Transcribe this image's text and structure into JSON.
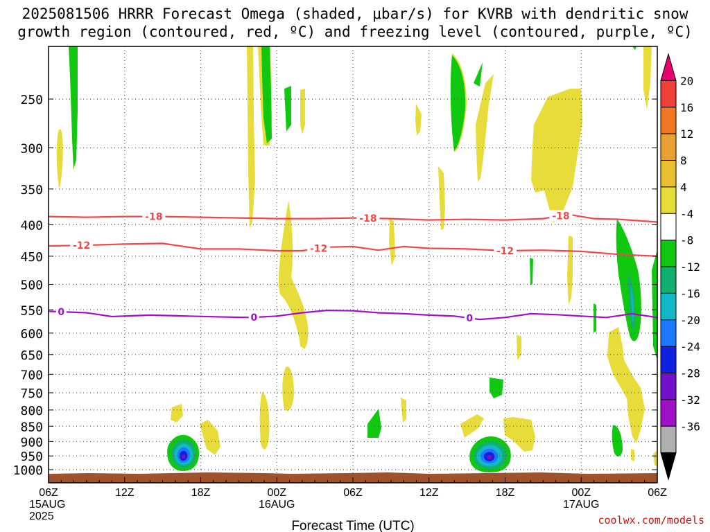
{
  "title": {
    "line1": "2025081506 HRRR Forecast Omega (shaded, μbar/s) for KVRB with dendritic snow",
    "line2": "growth region (contoured, red, ºC) and freezing level (contoured, purple, ºC)"
  },
  "credit": "coolwx.com/models",
  "chart_data": {
    "type": "time-height cross section",
    "xlabel": "Forecast Time (UTC)",
    "x_ticks": [
      {
        "hour": 0,
        "lines": [
          "06Z",
          "15AUG",
          "2025"
        ]
      },
      {
        "hour": 6,
        "lines": [
          "12Z"
        ]
      },
      {
        "hour": 12,
        "lines": [
          "18Z"
        ]
      },
      {
        "hour": 18,
        "lines": [
          "00Z",
          "16AUG"
        ]
      },
      {
        "hour": 24,
        "lines": [
          "06Z"
        ]
      },
      {
        "hour": 30,
        "lines": [
          "12Z"
        ]
      },
      {
        "hour": 36,
        "lines": [
          "18Z"
        ]
      },
      {
        "hour": 42,
        "lines": [
          "00Z",
          "17AUG"
        ]
      },
      {
        "hour": 48,
        "lines": [
          "06Z"
        ]
      }
    ],
    "xlim": [
      0,
      48
    ],
    "y_ticks": [
      250,
      300,
      350,
      400,
      450,
      500,
      550,
      600,
      650,
      700,
      750,
      800,
      850,
      900,
      950,
      1000
    ],
    "ylim": [
      200,
      1020
    ],
    "y_scale": "log-pressure",
    "grid": true,
    "colorbar": {
      "levels": [
        "20",
        "16",
        "12",
        "8",
        "4",
        "-4",
        "-8",
        "-12",
        "-16",
        "-20",
        "-24",
        "-28",
        "-32",
        "-36"
      ],
      "colors": [
        "#e8006e",
        "#f0403a",
        "#f07820",
        "#e8a030",
        "#e8c030",
        "#e8dc3a",
        "#ffffff",
        "#10c810",
        "#10b070",
        "#10b8c8",
        "#1e78ff",
        "#1020e0",
        "#7010c8",
        "#a010c8",
        "#b0b0b0",
        "#000000"
      ]
    },
    "contours": [
      {
        "name": "-18",
        "color": "#f04848",
        "labels": [
          {
            "hour": 8.3,
            "value": "-18"
          },
          {
            "hour": 25.2,
            "value": "-18"
          },
          {
            "hour": 40.4,
            "value": "-18"
          }
        ],
        "points": [
          [
            0,
            388
          ],
          [
            3,
            389
          ],
          [
            6,
            388
          ],
          [
            9,
            388
          ],
          [
            12,
            389
          ],
          [
            15,
            390
          ],
          [
            18,
            391
          ],
          [
            21,
            391
          ],
          [
            24,
            390
          ],
          [
            27,
            391
          ],
          [
            30,
            393
          ],
          [
            33,
            392
          ],
          [
            36,
            393
          ],
          [
            39,
            391
          ],
          [
            41,
            385
          ],
          [
            43,
            391
          ],
          [
            45,
            392
          ],
          [
            48,
            396
          ]
        ]
      },
      {
        "name": "-12",
        "color": "#f04848",
        "labels": [
          {
            "hour": 2.6,
            "value": "-12"
          },
          {
            "hour": 21.3,
            "value": "-12"
          },
          {
            "hour": 36.0,
            "value": "-12"
          }
        ],
        "points": [
          [
            0,
            433
          ],
          [
            3,
            432
          ],
          [
            6,
            430
          ],
          [
            9,
            429
          ],
          [
            12,
            438
          ],
          [
            15,
            438
          ],
          [
            18,
            441
          ],
          [
            20,
            441
          ],
          [
            22,
            435
          ],
          [
            24,
            434
          ],
          [
            26,
            440
          ],
          [
            28,
            434
          ],
          [
            30,
            437
          ],
          [
            33,
            438
          ],
          [
            36,
            441
          ],
          [
            39,
            440
          ],
          [
            42,
            442
          ],
          [
            45,
            447
          ],
          [
            48,
            450
          ]
        ]
      },
      {
        "name": "0",
        "color": "#a010c8",
        "labels": [
          {
            "hour": 1.0,
            "value": "0"
          },
          {
            "hour": 16.2,
            "value": "0"
          },
          {
            "hour": 33.2,
            "value": "0"
          }
        ],
        "points": [
          [
            0,
            553
          ],
          [
            3,
            556
          ],
          [
            5,
            564
          ],
          [
            8,
            561
          ],
          [
            11,
            563
          ],
          [
            14,
            565
          ],
          [
            16,
            566
          ],
          [
            18,
            563
          ],
          [
            20,
            556
          ],
          [
            22,
            551
          ],
          [
            24,
            552
          ],
          [
            26,
            556
          ],
          [
            28,
            558
          ],
          [
            30,
            561
          ],
          [
            32,
            563
          ],
          [
            34,
            570
          ],
          [
            36,
            566
          ],
          [
            38,
            558
          ],
          [
            40,
            560
          ],
          [
            42,
            563
          ],
          [
            44,
            566
          ],
          [
            46,
            558
          ],
          [
            48,
            566
          ]
        ]
      }
    ]
  }
}
